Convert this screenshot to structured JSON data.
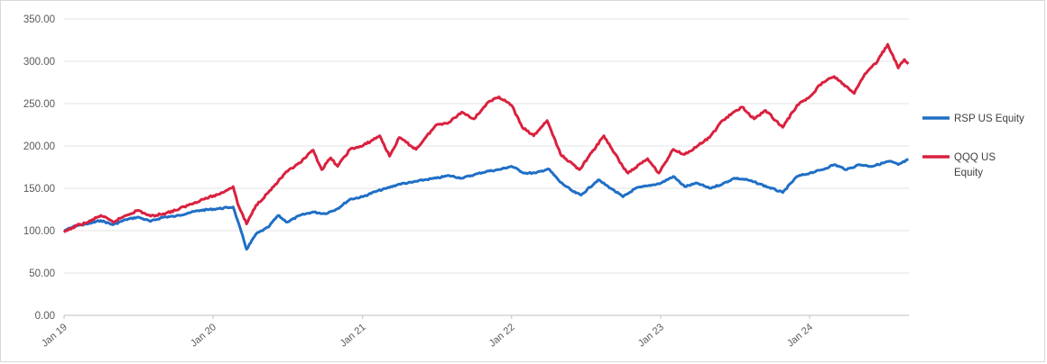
{
  "chart_data": {
    "type": "line",
    "title": "",
    "xlabel": "",
    "ylabel": "",
    "ylim": [
      0,
      350
    ],
    "yticks": [
      "0.00",
      "50.00",
      "100.00",
      "150.00",
      "200.00",
      "250.00",
      "300.00",
      "350.00"
    ],
    "xticks": [
      "Jan 19",
      "Jan 20",
      "Jan 21",
      "Jan 22",
      "Jan 23",
      "Jan 24"
    ],
    "grid": true,
    "legend_position": "right",
    "series": [
      {
        "name": "RSP US Equity",
        "color": "#1f6fc5",
        "points": [
          [
            "2019-01-01",
            100
          ],
          [
            "2019-02-01",
            106
          ],
          [
            "2019-03-01",
            108
          ],
          [
            "2019-04-01",
            112
          ],
          [
            "2019-05-01",
            107
          ],
          [
            "2019-06-01",
            113
          ],
          [
            "2019-07-01",
            116
          ],
          [
            "2019-08-01",
            111
          ],
          [
            "2019-09-01",
            116
          ],
          [
            "2019-10-01",
            117
          ],
          [
            "2019-11-01",
            121
          ],
          [
            "2019-12-01",
            124
          ],
          [
            "2020-01-15",
            126
          ],
          [
            "2020-02-19",
            128
          ],
          [
            "2020-03-01",
            112
          ],
          [
            "2020-03-23",
            78
          ],
          [
            "2020-04-15",
            96
          ],
          [
            "2020-05-15",
            104
          ],
          [
            "2020-06-08",
            118
          ],
          [
            "2020-06-30",
            110
          ],
          [
            "2020-08-01",
            118
          ],
          [
            "2020-09-01",
            122
          ],
          [
            "2020-10-01",
            120
          ],
          [
            "2020-11-01",
            126
          ],
          [
            "2020-12-01",
            137
          ],
          [
            "2021-01-01",
            140
          ],
          [
            "2021-02-01",
            146
          ],
          [
            "2021-03-01",
            150
          ],
          [
            "2021-04-01",
            155
          ],
          [
            "2021-05-01",
            157
          ],
          [
            "2021-06-01",
            160
          ],
          [
            "2021-07-01",
            162
          ],
          [
            "2021-08-01",
            165
          ],
          [
            "2021-09-01",
            162
          ],
          [
            "2021-10-01",
            166
          ],
          [
            "2021-11-01",
            170
          ],
          [
            "2021-12-01",
            172
          ],
          [
            "2022-01-01",
            176
          ],
          [
            "2022-02-01",
            168
          ],
          [
            "2022-03-01",
            168
          ],
          [
            "2022-04-01",
            173
          ],
          [
            "2022-05-01",
            157
          ],
          [
            "2022-06-01",
            146
          ],
          [
            "2022-06-20",
            142
          ],
          [
            "2022-08-01",
            160
          ],
          [
            "2022-09-01",
            150
          ],
          [
            "2022-10-01",
            140
          ],
          [
            "2022-11-01",
            150
          ],
          [
            "2022-12-01",
            153
          ],
          [
            "2023-01-01",
            156
          ],
          [
            "2023-02-01",
            164
          ],
          [
            "2023-03-01",
            152
          ],
          [
            "2023-04-01",
            156
          ],
          [
            "2023-05-01",
            150
          ],
          [
            "2023-06-01",
            155
          ],
          [
            "2023-07-01",
            162
          ],
          [
            "2023-08-01",
            160
          ],
          [
            "2023-09-01",
            155
          ],
          [
            "2023-10-27",
            145
          ],
          [
            "2023-12-01",
            164
          ],
          [
            "2024-01-01",
            168
          ],
          [
            "2024-02-01",
            172
          ],
          [
            "2024-03-01",
            178
          ],
          [
            "2024-04-01",
            172
          ],
          [
            "2024-05-01",
            178
          ],
          [
            "2024-06-01",
            176
          ],
          [
            "2024-07-15",
            182
          ],
          [
            "2024-08-05",
            178
          ],
          [
            "2024-08-30",
            184
          ]
        ]
      },
      {
        "name": "QQQ US Equity",
        "color": "#d9213f",
        "points": [
          [
            "2019-01-01",
            98
          ],
          [
            "2019-02-01",
            106
          ],
          [
            "2019-03-01",
            110
          ],
          [
            "2019-04-01",
            118
          ],
          [
            "2019-05-01",
            110
          ],
          [
            "2019-06-01",
            118
          ],
          [
            "2019-07-01",
            124
          ],
          [
            "2019-08-01",
            117
          ],
          [
            "2019-09-01",
            120
          ],
          [
            "2019-10-01",
            124
          ],
          [
            "2019-11-01",
            130
          ],
          [
            "2019-12-01",
            136
          ],
          [
            "2020-01-15",
            143
          ],
          [
            "2020-02-19",
            152
          ],
          [
            "2020-03-01",
            132
          ],
          [
            "2020-03-23",
            108
          ],
          [
            "2020-04-15",
            130
          ],
          [
            "2020-05-15",
            145
          ],
          [
            "2020-06-08",
            158
          ],
          [
            "2020-07-01",
            170
          ],
          [
            "2020-08-01",
            180
          ],
          [
            "2020-09-02",
            195
          ],
          [
            "2020-09-23",
            172
          ],
          [
            "2020-10-15",
            186
          ],
          [
            "2020-11-01",
            176
          ],
          [
            "2020-12-01",
            196
          ],
          [
            "2021-01-01",
            200
          ],
          [
            "2021-02-12",
            212
          ],
          [
            "2021-03-08",
            188
          ],
          [
            "2021-04-01",
            210
          ],
          [
            "2021-05-12",
            196
          ],
          [
            "2021-06-01",
            208
          ],
          [
            "2021-07-01",
            225
          ],
          [
            "2021-08-01",
            228
          ],
          [
            "2021-09-01",
            240
          ],
          [
            "2021-10-01",
            232
          ],
          [
            "2021-11-01",
            250
          ],
          [
            "2021-12-01",
            258
          ],
          [
            "2022-01-01",
            248
          ],
          [
            "2022-01-27",
            222
          ],
          [
            "2022-02-24",
            212
          ],
          [
            "2022-03-29",
            230
          ],
          [
            "2022-05-01",
            190
          ],
          [
            "2022-06-16",
            172
          ],
          [
            "2022-08-15",
            212
          ],
          [
            "2022-09-30",
            176
          ],
          [
            "2022-10-13",
            168
          ],
          [
            "2022-11-30",
            185
          ],
          [
            "2022-12-28",
            168
          ],
          [
            "2023-02-01",
            196
          ],
          [
            "2023-03-01",
            190
          ],
          [
            "2023-04-01",
            200
          ],
          [
            "2023-05-01",
            210
          ],
          [
            "2023-06-01",
            230
          ],
          [
            "2023-07-19",
            246
          ],
          [
            "2023-08-18",
            232
          ],
          [
            "2023-09-15",
            242
          ],
          [
            "2023-10-27",
            222
          ],
          [
            "2023-12-01",
            248
          ],
          [
            "2024-01-01",
            258
          ],
          [
            "2024-02-01",
            275
          ],
          [
            "2024-03-01",
            282
          ],
          [
            "2024-04-19",
            262
          ],
          [
            "2024-05-15",
            285
          ],
          [
            "2024-06-15",
            300
          ],
          [
            "2024-07-10",
            320
          ],
          [
            "2024-08-05",
            292
          ],
          [
            "2024-08-20",
            302
          ],
          [
            "2024-08-30",
            297
          ]
        ]
      }
    ]
  }
}
